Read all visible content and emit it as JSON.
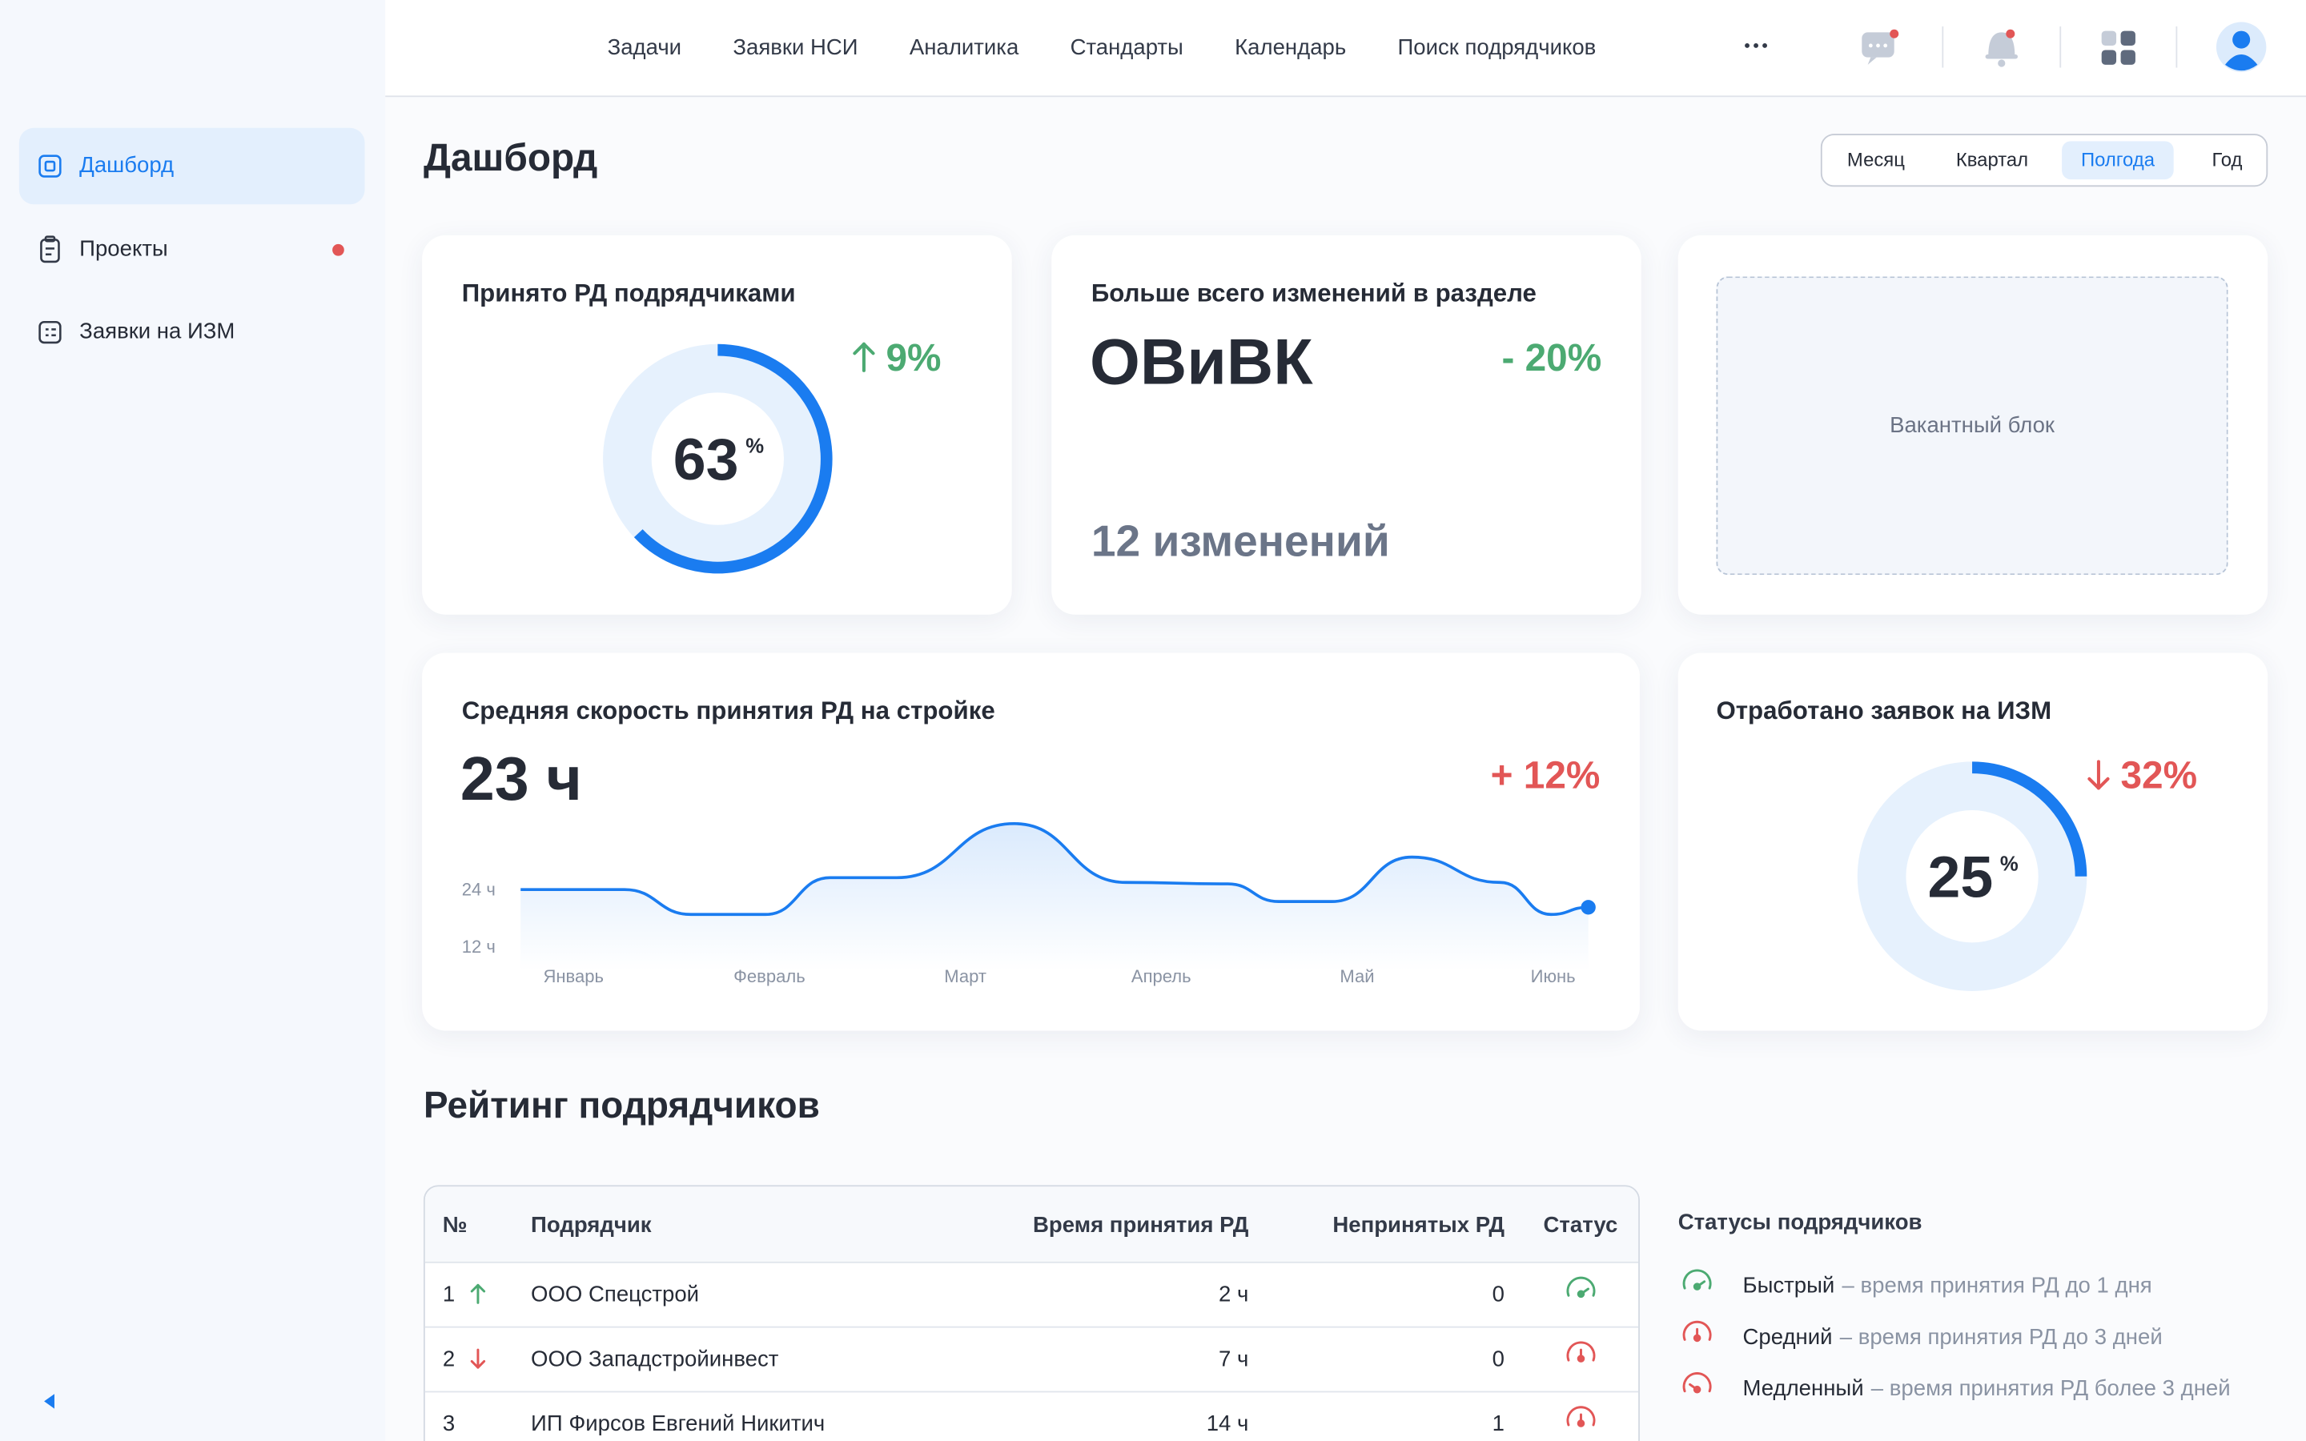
{
  "nav": {
    "items": [
      "Задачи",
      "Заявки НСИ",
      "Аналитика",
      "Стандарты",
      "Календарь",
      "Поиск подрядчиков"
    ]
  },
  "sidebar": {
    "items": [
      {
        "label": "Дашборд",
        "active": true
      },
      {
        "label": "Проекты",
        "badge": true
      },
      {
        "label": "Заявки на ИЗМ"
      }
    ]
  },
  "page_title": "Дашборд",
  "period": {
    "options": [
      "Месяц",
      "Квартал",
      "Полгода",
      "Год"
    ],
    "active": 2
  },
  "cards": [
    {
      "title": "Принято РД подрядчиками",
      "delta": "9%",
      "trend": "up",
      "chart": {
        "type": "pie",
        "value": 63,
        "unit": "%",
        "color": "#1a7cf0"
      }
    },
    {
      "title": "Больше всего изменений в разделе",
      "headline": "ОВиВК",
      "delta": "- 20%",
      "trend": "down-good",
      "footer": "12 изменений"
    },
    {
      "placeholder": "Вакантный блок"
    },
    {
      "title": "Средняя скорость принятия РД на стройке",
      "headline": "23 ч",
      "delta": "+ 12%",
      "trend": "bad",
      "chart": {
        "type": "line",
        "color": "#1a7cf0",
        "x": [
          -0.27,
          0.26,
          0.6,
          0.98,
          1.31,
          1.65,
          2.25,
          2.82,
          3.34,
          3.6,
          3.87,
          4.28,
          4.73,
          4.99,
          5.18
        ],
        "values": [
          24,
          24,
          18.8,
          18.8,
          26.5,
          26.5,
          37.8,
          25.5,
          25.2,
          21.5,
          21.5,
          30.8,
          25.5,
          18.8,
          20.3
        ],
        "xlim": [
          -0.27,
          5.18
        ],
        "ylim": [
          7,
          40
        ],
        "xticks": [
          {
            "value": 0,
            "label": "Январь"
          },
          {
            "value": 1,
            "label": "Февраль"
          },
          {
            "value": 2,
            "label": "Март"
          },
          {
            "value": 3,
            "label": "Апрель"
          },
          {
            "value": 4,
            "label": "Май"
          },
          {
            "value": 5,
            "label": "Июнь"
          }
        ],
        "yticks": [
          {
            "value": 24,
            "label": "24 ч"
          },
          {
            "value": 12,
            "label": "12 ч"
          }
        ]
      }
    },
    {
      "title": "Отработано заявок на ИЗМ",
      "delta": "32%",
      "trend": "down",
      "chart": {
        "type": "pie",
        "value": 25,
        "unit": "%",
        "color": "#1a7cf0"
      }
    }
  ],
  "table": {
    "title": "Рейтинг подрядчиков",
    "columns": [
      "№",
      "Подрядчик",
      "Время принятия РД",
      "Непринятых РД",
      "Статус"
    ],
    "rows": [
      {
        "cells": [
          "1",
          "ООО Спецстрой",
          "2 ч",
          "0"
        ],
        "trend": "up",
        "status": "Быстрый"
      },
      {
        "cells": [
          "2",
          "ООО Западстройинвест",
          "7 ч",
          "0"
        ],
        "trend": "down",
        "status": "Средний"
      },
      {
        "cells": [
          "3",
          "ИП Фирсов Евгений Никитич",
          "14 ч",
          "1"
        ],
        "status": "Средний"
      }
    ]
  },
  "legend": {
    "title": "Статусы подрядчиков",
    "items": [
      {
        "name": "Быстрый",
        "desc": "– время принятия РД до 1 дня",
        "color": "#4caa72"
      },
      {
        "name": "Средний",
        "desc": "– время принятия РД до 3 дней",
        "color": "#e25656"
      },
      {
        "name": "Медленный",
        "desc": "– время принятия РД более 3 дней",
        "color": "#e25656"
      }
    ]
  }
}
